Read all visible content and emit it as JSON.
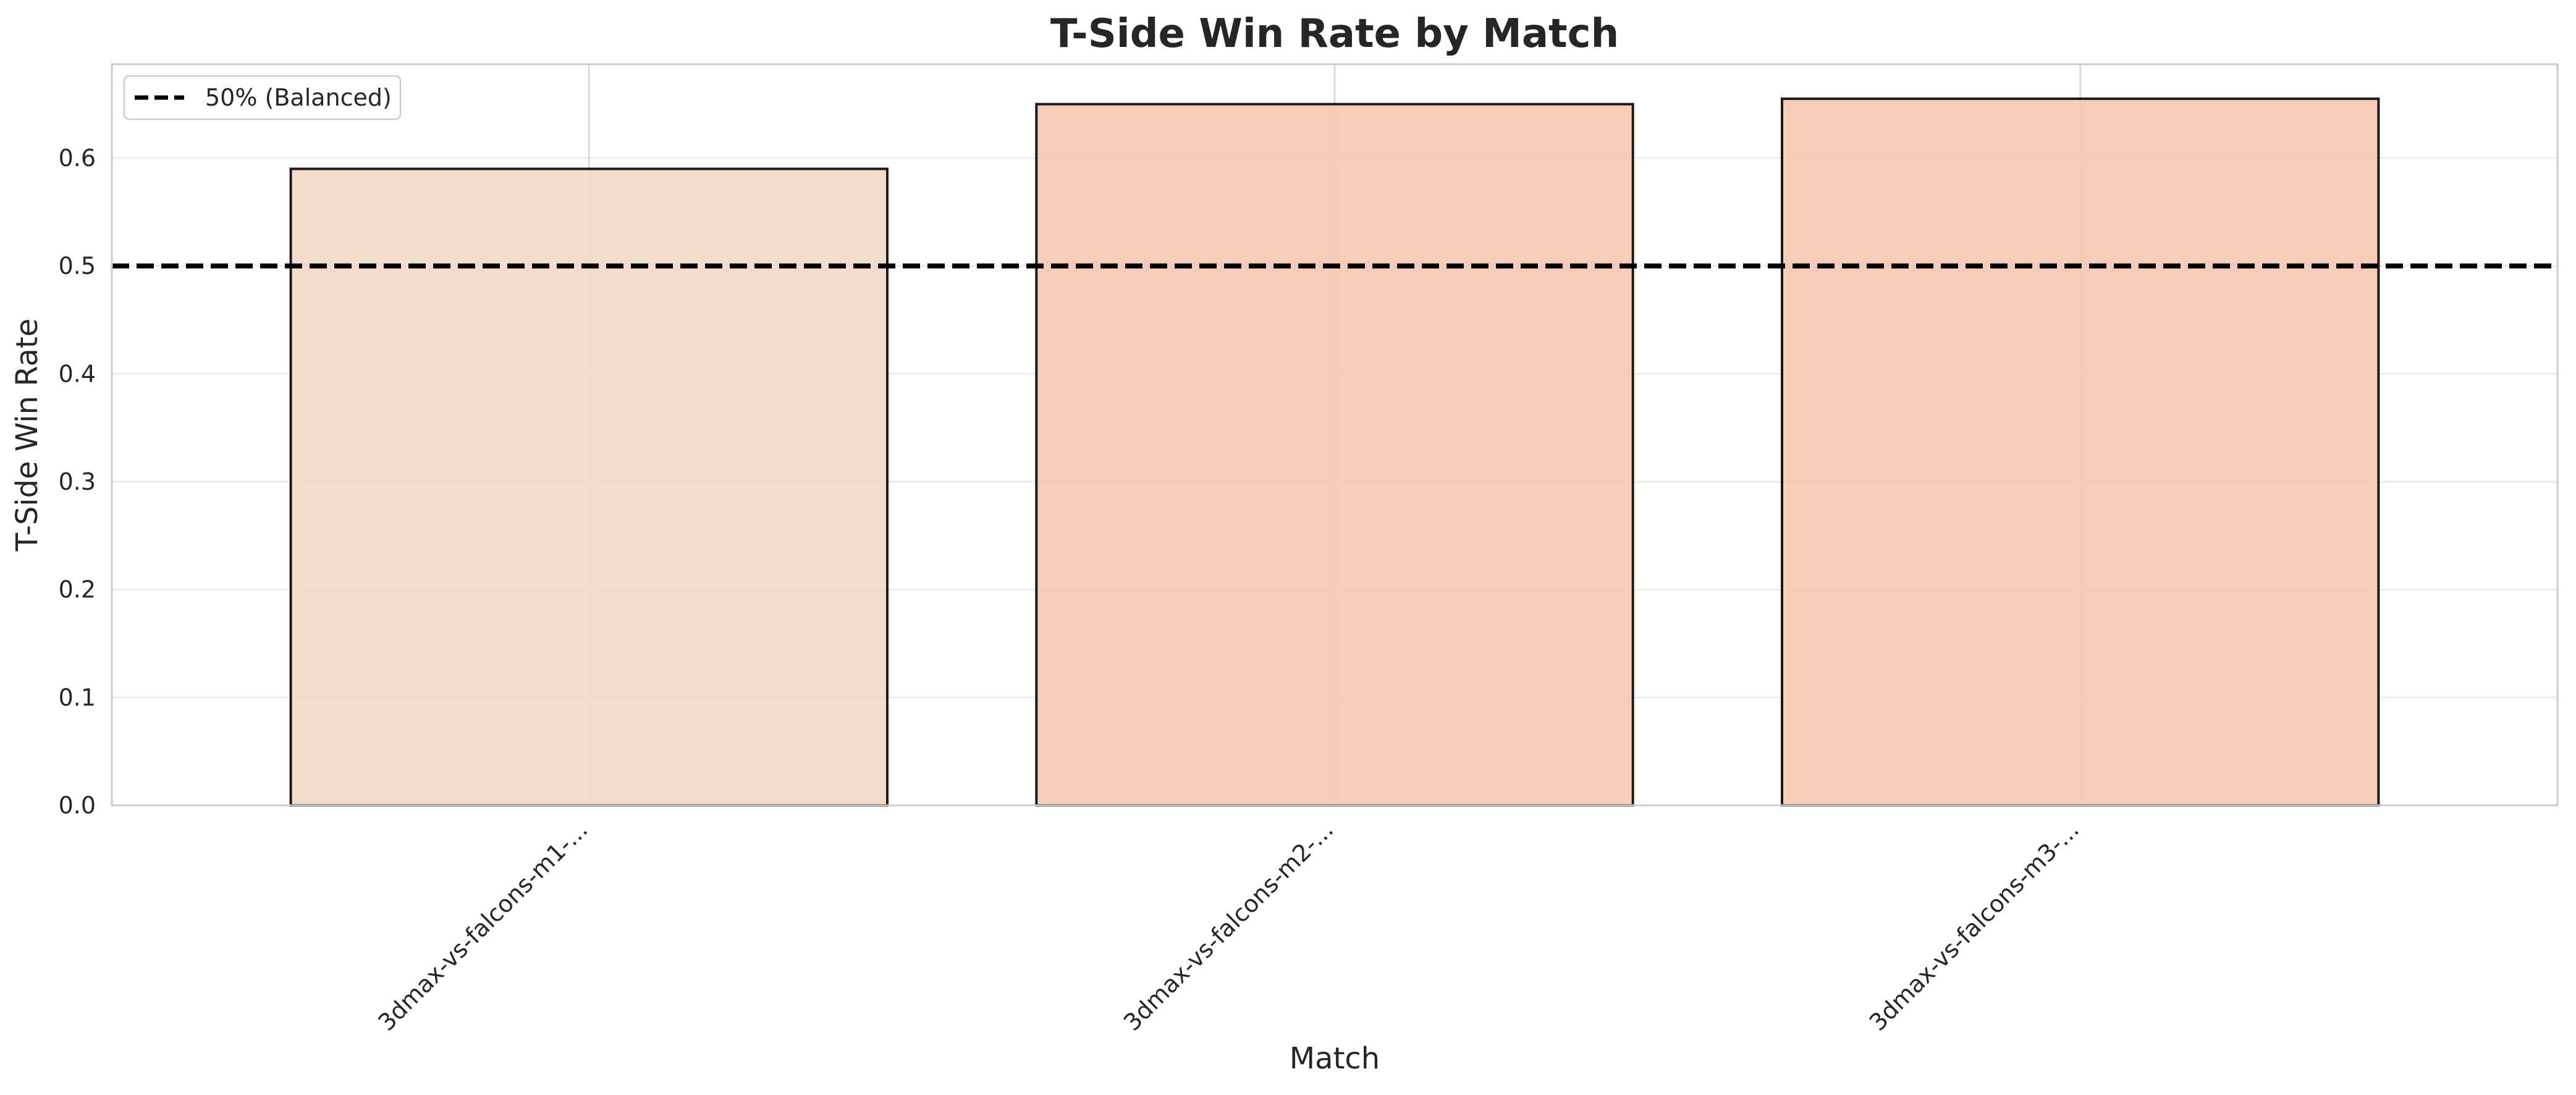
{
  "chart_data": {
    "type": "bar",
    "title": "T-Side Win Rate by Match",
    "xlabel": "Match",
    "ylabel": "T-Side Win Rate",
    "categories": [
      "3dmax-vs-falcons-m1-...",
      "3dmax-vs-falcons-m2-...",
      "3dmax-vs-falcons-m3-..."
    ],
    "values": [
      0.59,
      0.65,
      0.655
    ],
    "bar_colors": [
      "#f2d8c7",
      "#f6c8b1",
      "#f6c8b1"
    ],
    "bar_edge_color": "#1a1a1a",
    "ylim": [
      0,
      0.687
    ],
    "yticks": [
      0.0,
      0.1,
      0.2,
      0.3,
      0.4,
      0.5,
      0.6
    ],
    "ytick_labels": [
      "0.0",
      "0.1",
      "0.2",
      "0.3",
      "0.4",
      "0.5",
      "0.6"
    ],
    "reference_line": {
      "value": 0.5,
      "label": "50% (Balanced)",
      "style": "dashed",
      "color": "#000000"
    },
    "grid": true,
    "legend_position": "top-left"
  }
}
